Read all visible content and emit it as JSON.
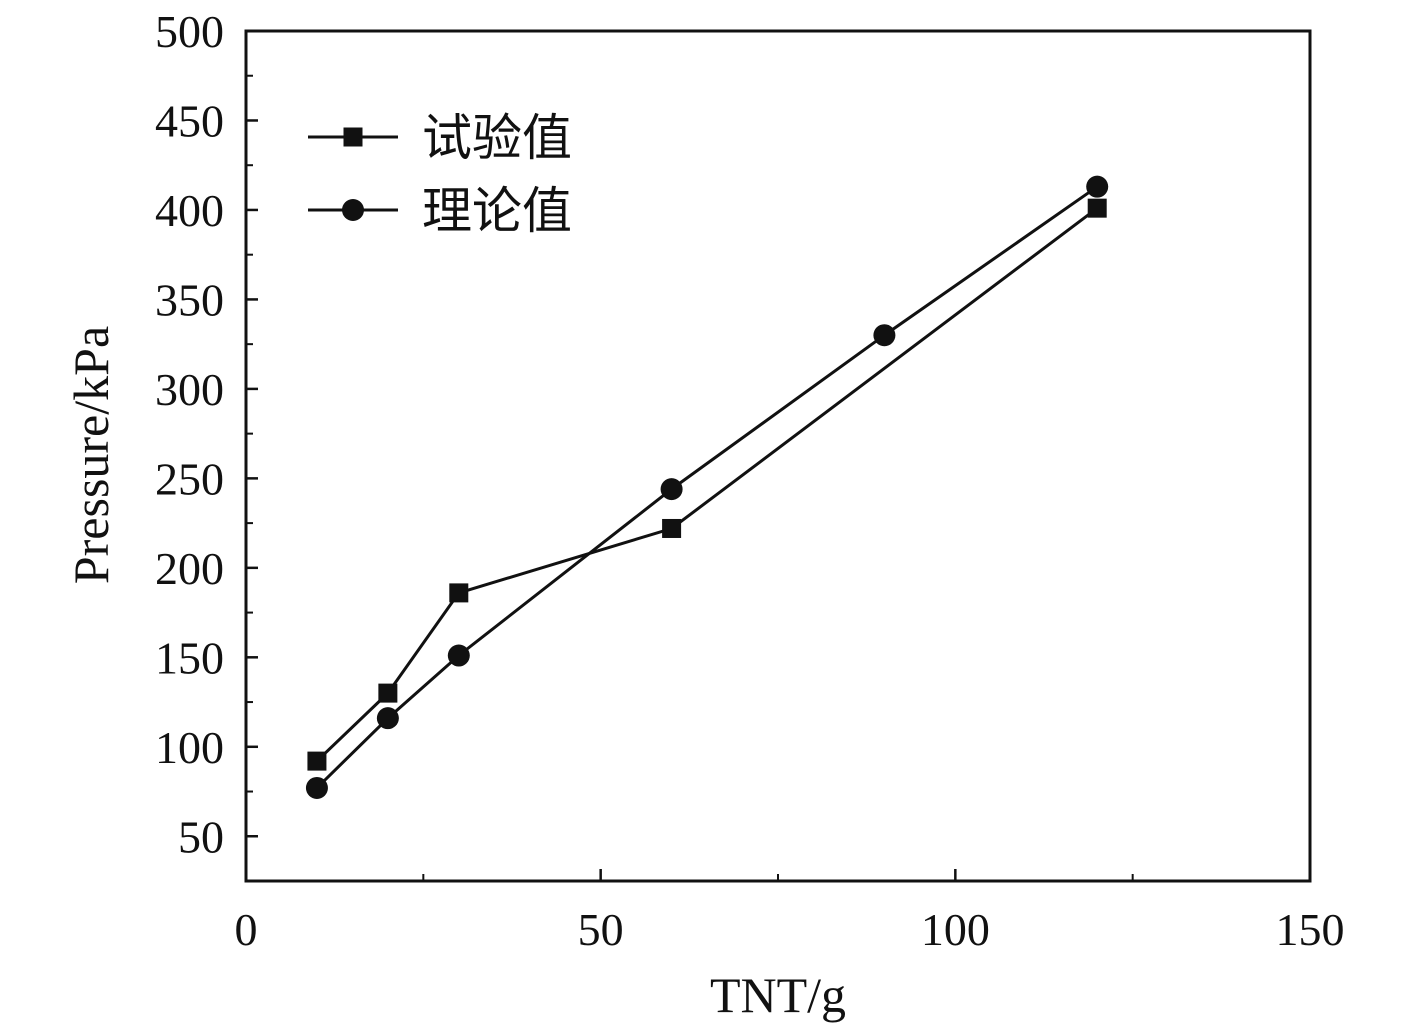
{
  "chart_data": {
    "type": "line",
    "title": "",
    "xlabel": "TNT/g",
    "ylabel": "Pressure/kPa",
    "xlim": [
      0,
      150
    ],
    "ylim": [
      25,
      500
    ],
    "xticks": [
      0,
      50,
      100,
      150
    ],
    "xticks_minor": [
      25,
      75,
      125
    ],
    "yticks": [
      50,
      100,
      150,
      200,
      250,
      300,
      350,
      400,
      450,
      500
    ],
    "yticks_minor": [
      75,
      125,
      175,
      225,
      275,
      325,
      375,
      425,
      475
    ],
    "grid": false,
    "legend_position": "top-left",
    "series": [
      {
        "name": "试验值",
        "marker": "square",
        "color": "#111111",
        "x": [
          10,
          20,
          30,
          60,
          120
        ],
        "y": [
          92,
          130,
          186,
          222,
          401
        ]
      },
      {
        "name": "理论值",
        "marker": "circle",
        "color": "#111111",
        "x": [
          10,
          20,
          30,
          60,
          90,
          120
        ],
        "y": [
          77,
          116,
          151,
          244,
          330,
          413
        ]
      }
    ]
  }
}
